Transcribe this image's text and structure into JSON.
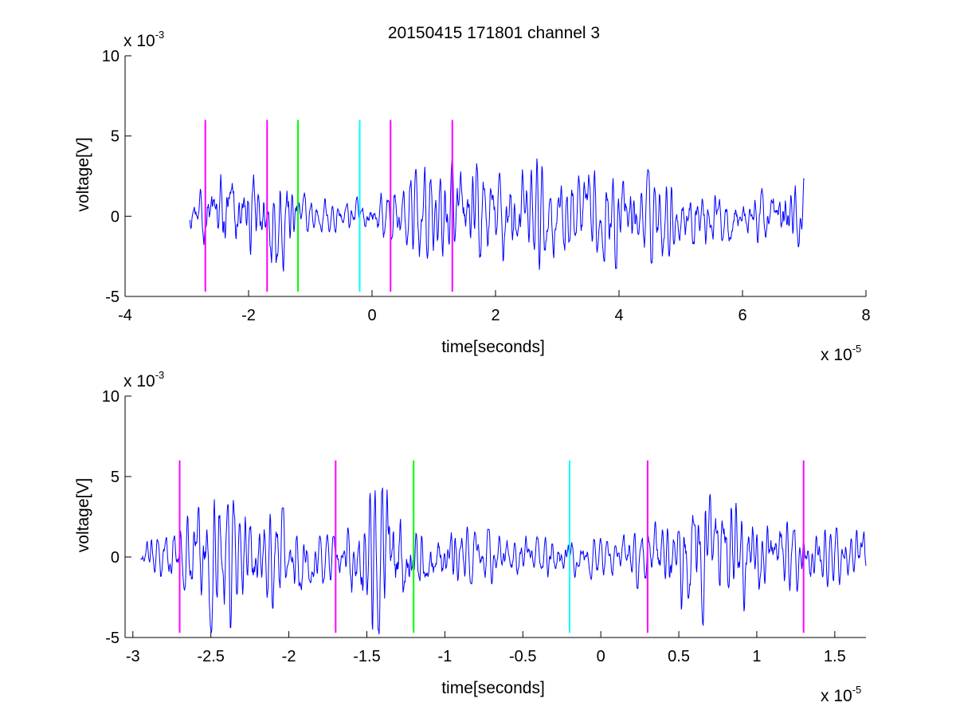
{
  "title": "20150415 171801 channel 3",
  "colors": {
    "signal": "#0000ff",
    "magenta": "#ff00ff",
    "green": "#00ff00",
    "cyan": "#00ffff",
    "axes": "#000000",
    "background": "#ffffff"
  },
  "chart_data": [
    {
      "type": "line",
      "xlabel": "time[seconds]",
      "ylabel": "voltage[V]",
      "x_exponent_label": {
        "base": "x 10",
        "exp": "-5"
      },
      "y_exponent_label": {
        "base": "x 10",
        "exp": "-3"
      },
      "xlim": [
        -4,
        8
      ],
      "ylim": [
        -5,
        10
      ],
      "x_scale": 1e-05,
      "y_scale": 0.001,
      "x_ticks": [
        -4,
        -2,
        0,
        2,
        4,
        6,
        8
      ],
      "x_tick_labels": [
        "-4",
        "-2",
        "0",
        "2",
        "4",
        "6",
        "8"
      ],
      "y_ticks": [
        -5,
        0,
        5,
        10
      ],
      "y_tick_labels": [
        "-5",
        "0",
        "5",
        "10"
      ],
      "grid": false,
      "series": [
        {
          "color": "#0000ff",
          "x_range": [
            -2.95,
            7.0
          ],
          "amplitude_envelope": [
            {
              "x": -2.95,
              "amp": 0.8
            },
            {
              "x": -2.7,
              "amp": 1.8
            },
            {
              "x": -2.5,
              "amp": 3.2
            },
            {
              "x": -2.0,
              "amp": 2.4
            },
            {
              "x": -1.4,
              "amp": 3.0
            },
            {
              "x": -1.0,
              "amp": 1.0
            },
            {
              "x": 0.0,
              "amp": 1.0
            },
            {
              "x": 0.7,
              "amp": 2.5
            },
            {
              "x": 2.0,
              "amp": 2.8
            },
            {
              "x": 4.0,
              "amp": 2.4
            },
            {
              "x": 6.0,
              "amp": 1.5
            },
            {
              "x": 6.8,
              "amp": 2.0
            },
            {
              "x": 7.0,
              "amp": 2.5
            }
          ]
        }
      ],
      "markers": [
        {
          "x": -2.7,
          "y": [
            -4.7,
            6.0
          ],
          "color": "#ff00ff"
        },
        {
          "x": -1.7,
          "y": [
            -4.7,
            6.0
          ],
          "color": "#ff00ff"
        },
        {
          "x": -1.2,
          "y": [
            -4.7,
            6.0
          ],
          "color": "#00ff00"
        },
        {
          "x": -0.2,
          "y": [
            -4.7,
            6.0
          ],
          "color": "#00ffff"
        },
        {
          "x": 0.3,
          "y": [
            -4.7,
            6.0
          ],
          "color": "#ff00ff"
        },
        {
          "x": 1.3,
          "y": [
            -4.7,
            6.0
          ],
          "color": "#ff00ff"
        }
      ]
    },
    {
      "type": "line",
      "xlabel": "time[seconds]",
      "ylabel": "voltage[V]",
      "x_exponent_label": {
        "base": "x 10",
        "exp": "-5"
      },
      "y_exponent_label": {
        "base": "x 10",
        "exp": "-3"
      },
      "xlim": [
        -3.05,
        1.7
      ],
      "ylim": [
        -5,
        10
      ],
      "x_scale": 1e-05,
      "y_scale": 0.001,
      "x_ticks": [
        -3,
        -2.5,
        -2,
        -1.5,
        -1,
        -0.5,
        0,
        0.5,
        1,
        1.5
      ],
      "x_tick_labels": [
        "-3",
        "-2.5",
        "-2",
        "-1.5",
        "-1",
        "-0.5",
        "0",
        "0.5",
        "1",
        "1.5"
      ],
      "y_ticks": [
        -5,
        0,
        5,
        10
      ],
      "y_tick_labels": [
        "-5",
        "0",
        "5",
        "10"
      ],
      "grid": false,
      "series": [
        {
          "color": "#0000ff",
          "x_range": [
            -2.95,
            1.7
          ],
          "amplitude_envelope": [
            {
              "x": -2.95,
              "amp": 0.8
            },
            {
              "x": -2.7,
              "amp": 1.5
            },
            {
              "x": -2.5,
              "amp": 3.8
            },
            {
              "x": -2.2,
              "amp": 2.5
            },
            {
              "x": -2.0,
              "amp": 2.2
            },
            {
              "x": -1.7,
              "amp": 1.2
            },
            {
              "x": -1.4,
              "amp": 4.5
            },
            {
              "x": -1.2,
              "amp": 2.0
            },
            {
              "x": -0.8,
              "amp": 1.3
            },
            {
              "x": -0.2,
              "amp": 1.1
            },
            {
              "x": 0.2,
              "amp": 1.3
            },
            {
              "x": 0.7,
              "amp": 3.3
            },
            {
              "x": 1.0,
              "amp": 2.2
            },
            {
              "x": 1.3,
              "amp": 1.5
            },
            {
              "x": 1.7,
              "amp": 1.2
            }
          ]
        }
      ],
      "markers": [
        {
          "x": -2.7,
          "y": [
            -4.7,
            6.0
          ],
          "color": "#ff00ff"
        },
        {
          "x": -1.7,
          "y": [
            -4.7,
            6.0
          ],
          "color": "#ff00ff"
        },
        {
          "x": -1.2,
          "y": [
            -4.7,
            6.0
          ],
          "color": "#00ff00"
        },
        {
          "x": -0.2,
          "y": [
            -4.7,
            6.0
          ],
          "color": "#00ffff"
        },
        {
          "x": 0.3,
          "y": [
            -4.7,
            6.0
          ],
          "color": "#ff00ff"
        },
        {
          "x": 1.3,
          "y": [
            -4.7,
            6.0
          ],
          "color": "#ff00ff"
        }
      ]
    }
  ]
}
